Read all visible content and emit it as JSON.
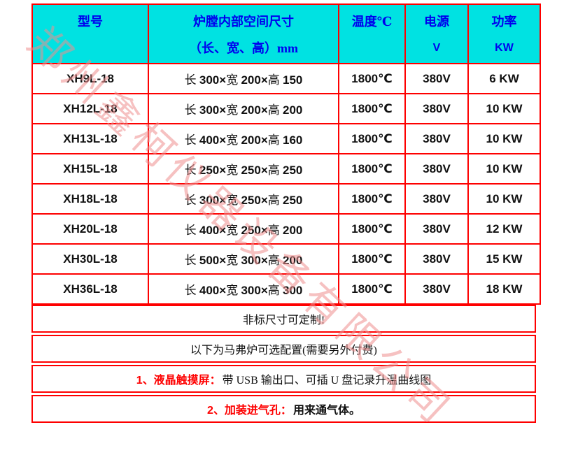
{
  "watermark": {
    "text": "郑州鑫柯仪器设备有限公司",
    "color": "#ef8f8f"
  },
  "table": {
    "header": {
      "model": "型号",
      "dims_line1": "炉膛内部空间尺寸",
      "dims_line2": "（长、宽、高）mm",
      "temp": "温度℃",
      "power_supply_line1": "电源",
      "power_supply_line2": "V",
      "power_line1": "功率",
      "power_line2": "KW"
    },
    "dim_labels": {
      "length": "长",
      "width": "宽",
      "height": "高",
      "multiply": "×"
    },
    "rows": [
      {
        "model": "XH9L-18",
        "length": "300",
        "width": "200",
        "height": "150",
        "temp": "1800℃",
        "voltage": "380V",
        "power": "6 KW"
      },
      {
        "model": "XH12L-18",
        "length": "300",
        "width": "200",
        "height": "200",
        "temp": "1800℃",
        "voltage": "380V",
        "power": "10 KW"
      },
      {
        "model": "XH13L-18",
        "length": "400",
        "width": "200",
        "height": "160",
        "temp": "1800℃",
        "voltage": "380V",
        "power": "10 KW"
      },
      {
        "model": "XH15L-18",
        "length": "250",
        "width": "250",
        "height": "250",
        "temp": "1800℃",
        "voltage": "380V",
        "power": "10 KW"
      },
      {
        "model": "XH18L-18",
        "length": "300",
        "width": "250",
        "height": "250",
        "temp": "1800℃",
        "voltage": "380V",
        "power": "10 KW"
      },
      {
        "model": "XH20L-18",
        "length": "400",
        "width": "250",
        "height": "200",
        "temp": "1800℃",
        "voltage": "380V",
        "power": "12 KW"
      },
      {
        "model": "XH30L-18",
        "length": "500",
        "width": "300",
        "height": "200",
        "temp": "1800℃",
        "voltage": "380V",
        "power": "15 KW"
      },
      {
        "model": "XH36L-18",
        "length": "400",
        "width": "300",
        "height": "300",
        "temp": "1800℃",
        "voltage": "380V",
        "power": "18 KW"
      }
    ],
    "notes": [
      {
        "label": "",
        "text": "非标尺寸可定制!"
      },
      {
        "label": "",
        "text": "以下为马弗炉可选配置(需要另外付费)"
      },
      {
        "label": "1、液晶触摸屏：",
        "text": "带 USB 输出口、可插 U 盘记录升温曲线图"
      },
      {
        "label": "2、加装进气孔：",
        "text": "用来通气体。"
      }
    ],
    "colors": {
      "header_bg": "#00e2e2",
      "header_text": "#0000ee",
      "border": "#fe0000",
      "note_label": "#fe0000"
    }
  }
}
